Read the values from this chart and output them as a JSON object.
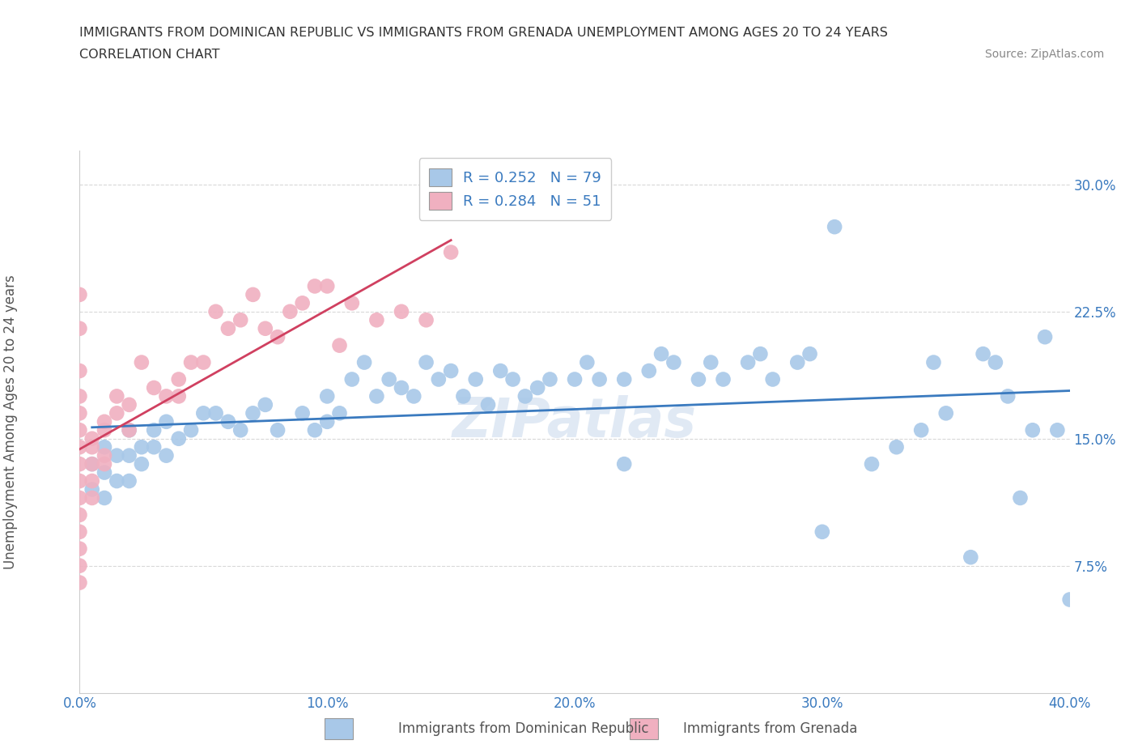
{
  "title_line1": "IMMIGRANTS FROM DOMINICAN REPUBLIC VS IMMIGRANTS FROM GRENADA UNEMPLOYMENT AMONG AGES 20 TO 24 YEARS",
  "title_line2": "CORRELATION CHART",
  "source": "Source: ZipAtlas.com",
  "ylabel": "Unemployment Among Ages 20 to 24 years",
  "xlim": [
    0.0,
    0.4
  ],
  "ylim": [
    0.0,
    0.32
  ],
  "xticks": [
    0.0,
    0.1,
    0.2,
    0.3,
    0.4
  ],
  "xticklabels": [
    "0.0%",
    "10.0%",
    "20.0%",
    "30.0%",
    "40.0%"
  ],
  "ytick_vals": [
    0.075,
    0.15,
    0.225,
    0.3
  ],
  "ytick_labels": [
    "7.5%",
    "15.0%",
    "22.5%",
    "30.0%"
  ],
  "legend_label_blue": "R = 0.252   N = 79",
  "legend_label_pink": "R = 0.284   N = 51",
  "blue_color": "#a8c8e8",
  "pink_color": "#f0b0c0",
  "blue_line_color": "#3a7abf",
  "pink_line_color": "#d04060",
  "watermark": "ZIPatlas",
  "background_color": "#ffffff",
  "grid_color": "#d8d8d8",
  "bottom_legend_blue": "Immigrants from Dominican Republic",
  "bottom_legend_pink": "Immigrants from Grenada",
  "blue_x": [
    0.005,
    0.005,
    0.01,
    0.01,
    0.01,
    0.015,
    0.015,
    0.02,
    0.02,
    0.02,
    0.025,
    0.025,
    0.03,
    0.03,
    0.035,
    0.035,
    0.04,
    0.045,
    0.05,
    0.055,
    0.06,
    0.065,
    0.07,
    0.075,
    0.08,
    0.09,
    0.095,
    0.1,
    0.1,
    0.105,
    0.11,
    0.115,
    0.12,
    0.125,
    0.13,
    0.135,
    0.14,
    0.145,
    0.15,
    0.155,
    0.16,
    0.165,
    0.17,
    0.175,
    0.18,
    0.185,
    0.19,
    0.2,
    0.205,
    0.21,
    0.22,
    0.23,
    0.235,
    0.24,
    0.25,
    0.255,
    0.26,
    0.27,
    0.275,
    0.28,
    0.29,
    0.295,
    0.305,
    0.32,
    0.33,
    0.34,
    0.345,
    0.35,
    0.36,
    0.365,
    0.37,
    0.375,
    0.38,
    0.385,
    0.39,
    0.395,
    0.4,
    0.22,
    0.3
  ],
  "blue_y": [
    0.135,
    0.12,
    0.145,
    0.13,
    0.115,
    0.14,
    0.125,
    0.155,
    0.14,
    0.125,
    0.145,
    0.135,
    0.155,
    0.145,
    0.16,
    0.14,
    0.15,
    0.155,
    0.165,
    0.165,
    0.16,
    0.155,
    0.165,
    0.17,
    0.155,
    0.165,
    0.155,
    0.175,
    0.16,
    0.165,
    0.185,
    0.195,
    0.175,
    0.185,
    0.18,
    0.175,
    0.195,
    0.185,
    0.19,
    0.175,
    0.185,
    0.17,
    0.19,
    0.185,
    0.175,
    0.18,
    0.185,
    0.185,
    0.195,
    0.185,
    0.185,
    0.19,
    0.2,
    0.195,
    0.185,
    0.195,
    0.185,
    0.195,
    0.2,
    0.185,
    0.195,
    0.2,
    0.275,
    0.135,
    0.145,
    0.155,
    0.195,
    0.165,
    0.08,
    0.2,
    0.195,
    0.175,
    0.115,
    0.155,
    0.21,
    0.155,
    0.055,
    0.135,
    0.095
  ],
  "pink_x": [
    0.0,
    0.0,
    0.0,
    0.0,
    0.0,
    0.0,
    0.0,
    0.0,
    0.0,
    0.0,
    0.0,
    0.0,
    0.0,
    0.0,
    0.0,
    0.005,
    0.005,
    0.005,
    0.005,
    0.005,
    0.01,
    0.01,
    0.01,
    0.01,
    0.015,
    0.015,
    0.02,
    0.02,
    0.025,
    0.03,
    0.035,
    0.04,
    0.04,
    0.045,
    0.05,
    0.055,
    0.06,
    0.065,
    0.07,
    0.075,
    0.08,
    0.085,
    0.09,
    0.095,
    0.1,
    0.105,
    0.11,
    0.12,
    0.13,
    0.14,
    0.15
  ],
  "pink_y": [
    0.235,
    0.215,
    0.19,
    0.175,
    0.165,
    0.155,
    0.145,
    0.135,
    0.125,
    0.115,
    0.105,
    0.095,
    0.085,
    0.075,
    0.065,
    0.15,
    0.145,
    0.135,
    0.125,
    0.115,
    0.16,
    0.155,
    0.14,
    0.135,
    0.175,
    0.165,
    0.17,
    0.155,
    0.195,
    0.18,
    0.175,
    0.185,
    0.175,
    0.195,
    0.195,
    0.225,
    0.215,
    0.22,
    0.235,
    0.215,
    0.21,
    0.225,
    0.23,
    0.24,
    0.24,
    0.205,
    0.23,
    0.22,
    0.225,
    0.22,
    0.26
  ]
}
